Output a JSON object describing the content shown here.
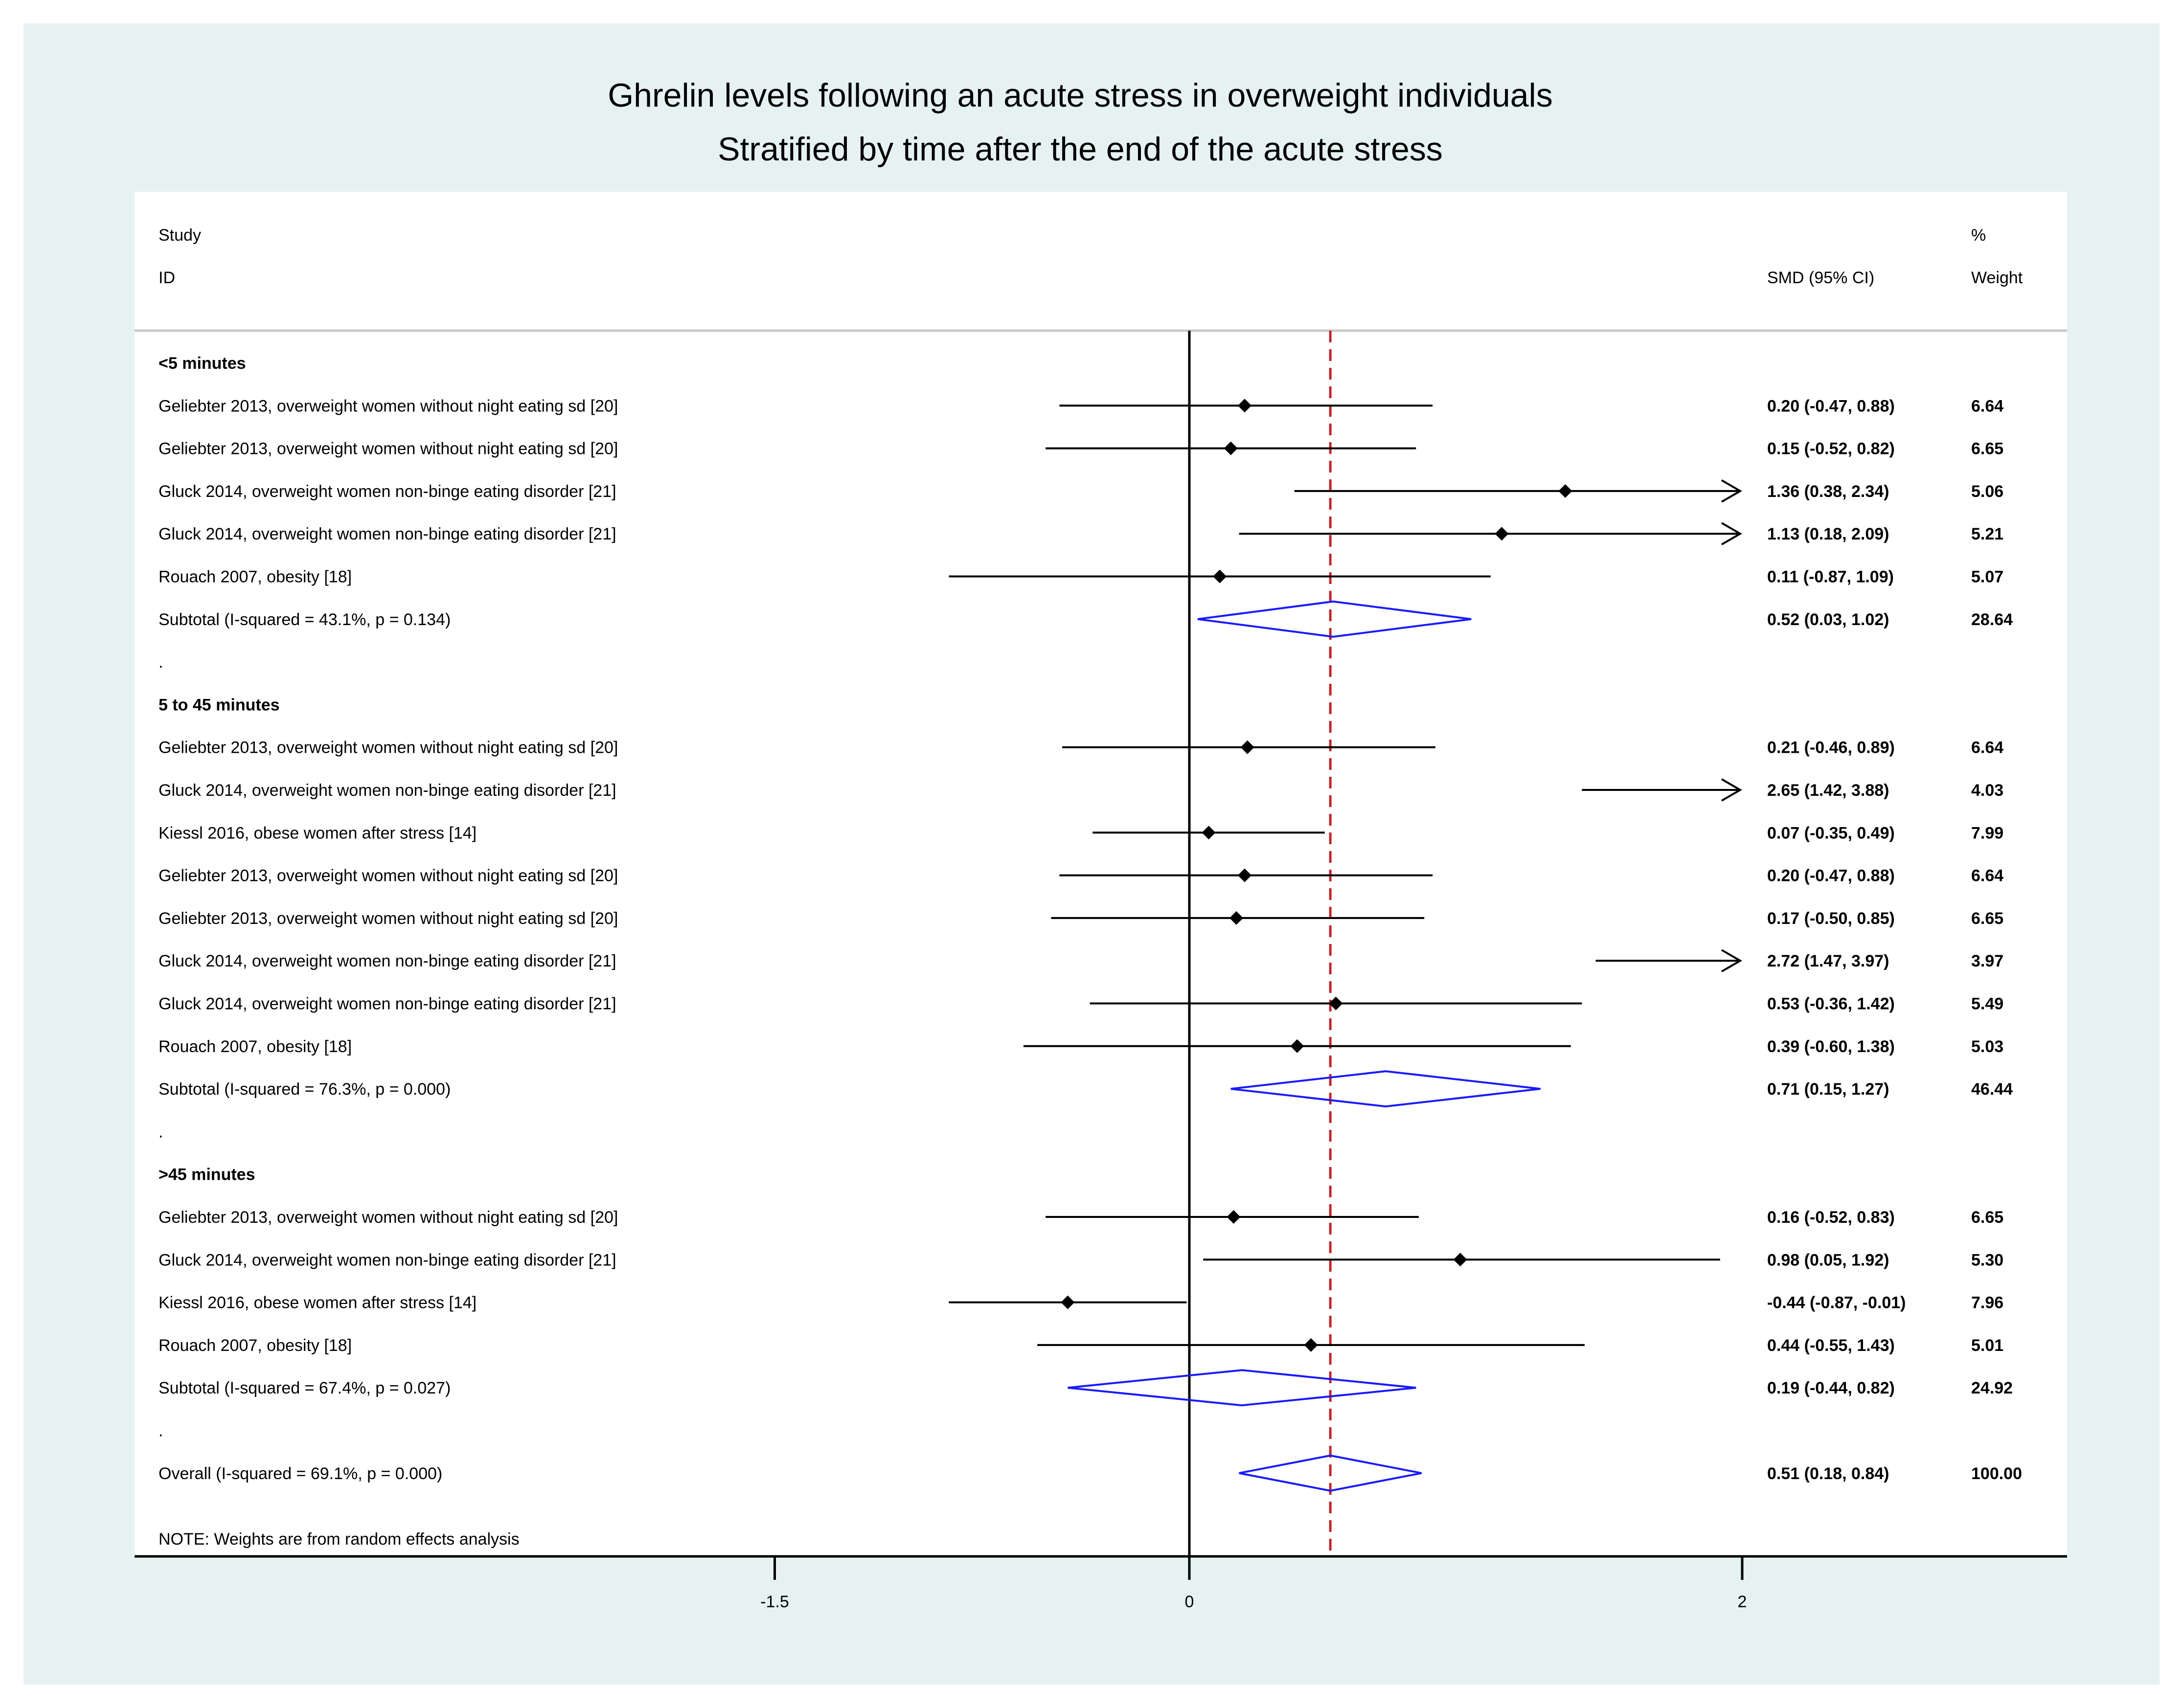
{
  "chart_data": {
    "type": "forest",
    "title": "Ghrelin levels following an acute stress in overweight individuals",
    "subtitle": "Stratified by time after the end of the acute stress",
    "header": {
      "study_line1": "Study",
      "study_line2": "ID",
      "effect": "SMD (95% CI)",
      "weight_line1": "%",
      "weight_line2": "Weight"
    },
    "x_ticks": [
      {
        "value": -1.5,
        "label": "-1.5"
      },
      {
        "value": 0,
        "label": "0"
      },
      {
        "value": 2,
        "label": "2"
      }
    ],
    "xlim": [
      -3.82,
      3.17
    ],
    "overall_effect_line": 0.51,
    "rows": [
      {
        "kind": "group",
        "label": "<5 minutes"
      },
      {
        "kind": "study",
        "label": "Geliebter 2013, overweight women without night eating sd [20]",
        "est": 0.2,
        "lo": -0.47,
        "hi": 0.88,
        "ci_text": "0.20 (-0.47, 0.88)",
        "weight": "6.64"
      },
      {
        "kind": "study",
        "label": "Geliebter 2013, overweight women without night eating sd [20]",
        "est": 0.15,
        "lo": -0.52,
        "hi": 0.82,
        "ci_text": "0.15 (-0.52, 0.82)",
        "weight": "6.65"
      },
      {
        "kind": "study",
        "label": "Gluck 2014, overweight women non-binge eating disorder [21]",
        "est": 1.36,
        "lo": 0.38,
        "hi": 2.34,
        "ci_text": "1.36 (0.38, 2.34)",
        "weight": "5.06"
      },
      {
        "kind": "study",
        "label": "Gluck 2014, overweight women non-binge eating disorder [21]",
        "est": 1.13,
        "lo": 0.18,
        "hi": 2.09,
        "ci_text": "1.13 (0.18, 2.09)",
        "weight": "5.21"
      },
      {
        "kind": "study",
        "label": "Rouach 2007, obesity [18]",
        "est": 0.11,
        "lo": -0.87,
        "hi": 1.09,
        "ci_text": "0.11 (-0.87, 1.09)",
        "weight": "5.07"
      },
      {
        "kind": "subtotal",
        "label": "Subtotal  (I-squared = 43.1%, p = 0.134)",
        "est": 0.52,
        "lo": 0.03,
        "hi": 1.02,
        "ci_text": "0.52 (0.03, 1.02)",
        "weight": "28.64"
      },
      {
        "kind": "spacer",
        "label": "."
      },
      {
        "kind": "group",
        "label": "5 to 45 minutes"
      },
      {
        "kind": "study",
        "label": "Geliebter 2013, overweight women without night eating sd [20]",
        "est": 0.21,
        "lo": -0.46,
        "hi": 0.89,
        "ci_text": "0.21 (-0.46, 0.89)",
        "weight": "6.64"
      },
      {
        "kind": "study",
        "label": "Gluck 2014, overweight women non-binge eating disorder [21]",
        "est": 2.65,
        "lo": 1.42,
        "hi": 3.88,
        "ci_text": "2.65 (1.42, 3.88)",
        "weight": "4.03"
      },
      {
        "kind": "study",
        "label": "Kiessl 2016, obese women after stress [14]",
        "est": 0.07,
        "lo": -0.35,
        "hi": 0.49,
        "ci_text": "0.07 (-0.35, 0.49)",
        "weight": "7.99"
      },
      {
        "kind": "study",
        "label": "Geliebter 2013, overweight women without night eating sd [20]",
        "est": 0.2,
        "lo": -0.47,
        "hi": 0.88,
        "ci_text": "0.20 (-0.47, 0.88)",
        "weight": "6.64"
      },
      {
        "kind": "study",
        "label": "Geliebter 2013, overweight women without night eating sd [20]",
        "est": 0.17,
        "lo": -0.5,
        "hi": 0.85,
        "ci_text": "0.17 (-0.50, 0.85)",
        "weight": "6.65"
      },
      {
        "kind": "study",
        "label": "Gluck 2014, overweight women non-binge eating disorder [21]",
        "est": 2.72,
        "lo": 1.47,
        "hi": 3.97,
        "ci_text": "2.72 (1.47, 3.97)",
        "weight": "3.97"
      },
      {
        "kind": "study",
        "label": "Gluck 2014, overweight women non-binge eating disorder [21]",
        "est": 0.53,
        "lo": -0.36,
        "hi": 1.42,
        "ci_text": "0.53 (-0.36, 1.42)",
        "weight": "5.49"
      },
      {
        "kind": "study",
        "label": "Rouach 2007, obesity [18]",
        "est": 0.39,
        "lo": -0.6,
        "hi": 1.38,
        "ci_text": "0.39 (-0.60, 1.38)",
        "weight": "5.03"
      },
      {
        "kind": "subtotal",
        "label": "Subtotal  (I-squared = 76.3%, p = 0.000)",
        "est": 0.71,
        "lo": 0.15,
        "hi": 1.27,
        "ci_text": "0.71 (0.15, 1.27)",
        "weight": "46.44"
      },
      {
        "kind": "spacer",
        "label": "."
      },
      {
        "kind": "group",
        "label": ">45 minutes"
      },
      {
        "kind": "study",
        "label": "Geliebter 2013, overweight women without night eating sd [20]",
        "est": 0.16,
        "lo": -0.52,
        "hi": 0.83,
        "ci_text": "0.16 (-0.52, 0.83)",
        "weight": "6.65"
      },
      {
        "kind": "study",
        "label": "Gluck 2014, overweight women non-binge eating disorder [21]",
        "est": 0.98,
        "lo": 0.05,
        "hi": 1.92,
        "ci_text": "0.98 (0.05, 1.92)",
        "weight": "5.30"
      },
      {
        "kind": "study",
        "label": "Kiessl 2016, obese women after stress [14]",
        "est": -0.44,
        "lo": -0.87,
        "hi": -0.01,
        "ci_text": "-0.44 (-0.87, -0.01)",
        "weight": "7.96"
      },
      {
        "kind": "study",
        "label": "Rouach 2007, obesity [18]",
        "est": 0.44,
        "lo": -0.55,
        "hi": 1.43,
        "ci_text": "0.44 (-0.55, 1.43)",
        "weight": "5.01"
      },
      {
        "kind": "subtotal",
        "label": "Subtotal  (I-squared = 67.4%, p = 0.027)",
        "est": 0.19,
        "lo": -0.44,
        "hi": 0.82,
        "ci_text": "0.19 (-0.44, 0.82)",
        "weight": "24.92"
      },
      {
        "kind": "spacer",
        "label": "."
      },
      {
        "kind": "overall",
        "label": "Overall  (I-squared = 69.1%, p = 0.000)",
        "est": 0.51,
        "lo": 0.18,
        "hi": 0.84,
        "ci_text": "0.51 (0.18, 0.84)",
        "weight": "100.00"
      }
    ],
    "note": "NOTE: Weights are from random effects analysis",
    "colors": {
      "background": "#e5f2f1",
      "panel": "#ffffff",
      "ci_line": "#000000",
      "diamond": "#1a1aff",
      "reference_line": "#c0262c"
    }
  }
}
